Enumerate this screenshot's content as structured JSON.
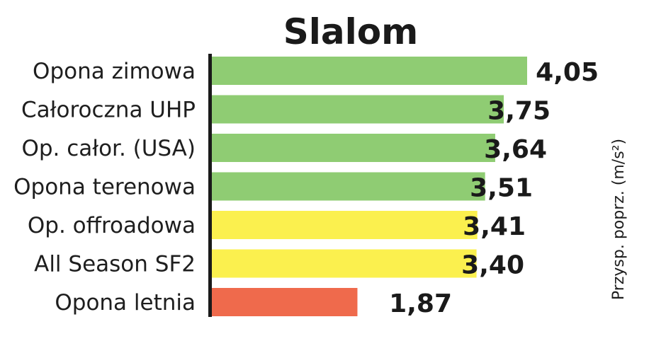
{
  "chart_data": {
    "type": "bar",
    "orientation": "horizontal",
    "title": "Slalom",
    "ylabel": "Przysp. poprz.  (m/s²)",
    "categories": [
      "Opona zimowa",
      "Całoroczna UHP",
      "Op. całor. (USA)",
      "Opona terenowa",
      "Op. offroadowa",
      "All Season SF2",
      "Opona letnia"
    ],
    "values": [
      4.05,
      3.75,
      3.64,
      3.51,
      3.41,
      3.4,
      1.87
    ],
    "value_labels": [
      "4,05",
      "3,75",
      "3,64",
      "3,51",
      "3,41",
      "3,40",
      "1,87"
    ],
    "bar_colors": [
      "#8fcc73",
      "#8fcc73",
      "#8fcc73",
      "#8fcc73",
      "#fbf04e",
      "#fbf04e",
      "#ef6a4c"
    ],
    "axis_color": "#1a1a1a",
    "grid": false,
    "legend": "none"
  }
}
